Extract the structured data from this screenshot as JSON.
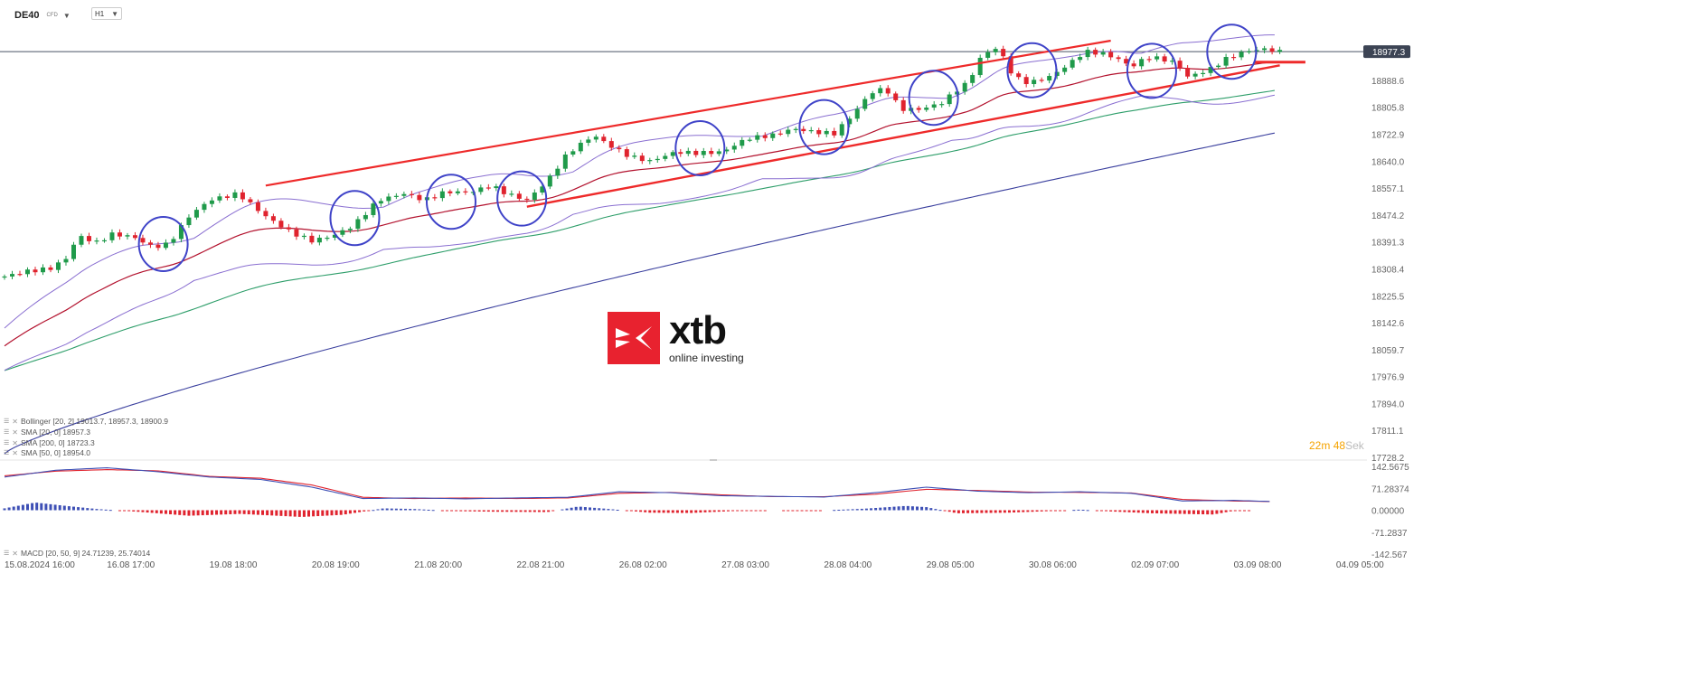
{
  "header": {
    "symbol": "DE40",
    "symbol_type": "CFD",
    "timeframe": "H1"
  },
  "indicators": [
    {
      "label": "Bollinger [20, 2] 19013.7, 18957.3, 18900.9"
    },
    {
      "label": "SMA [20, 0] 18957.3"
    },
    {
      "label": "SMA [200, 0] 18723.3"
    },
    {
      "label": "SMA [50, 0] 18954.0"
    }
  ],
  "macd": {
    "label": "MACD [20, 50, 9] 24.71239, 25.74014"
  },
  "timer": {
    "minutes": "22",
    "m_unit": "m",
    "seconds": "48",
    "s_unit": "Sek"
  },
  "logo": {
    "name": "xtb",
    "tagline": "online investing"
  },
  "current_price": "18977.3",
  "colors": {
    "bull": "#1f9a4a",
    "bear": "#e0232e",
    "bollinger": "#8a6fd1",
    "sma20": "#b3122e",
    "sma50": "#2e9e6a",
    "sma200": "#3a3f9e",
    "channel": "#ee2a2a",
    "circle": "#3f43c8",
    "macd_line": "#3d4fb5",
    "signal_line": "#e0232e"
  },
  "chart_data": [
    {
      "type": "candlestick",
      "title": "DE40 H1",
      "y_ticks": [
        "18977.3",
        "18888.6",
        "18805.8",
        "18722.9",
        "18640.0",
        "18557.1",
        "18474.2",
        "18391.3",
        "18308.4",
        "18225.5",
        "18142.6",
        "18059.7",
        "17976.9",
        "17894.0",
        "17811.1",
        "17728.2"
      ],
      "x_ticks": [
        "15.08.2024 16:00",
        "16.08 17:00",
        "19.08 18:00",
        "20.08 19:00",
        "21.08 20:00",
        "22.08 21:00",
        "26.08 02:00",
        "27.08 03:00",
        "28.08 04:00",
        "29.08 05:00",
        "30.08 06:00",
        "02.09 07:00",
        "03.09 08:00",
        "04.09 05:00"
      ],
      "ylim": [
        17728.2,
        19011.0
      ],
      "x_count": 13.06,
      "price_path": [
        [
          0.0,
          18285
        ],
        [
          0.2,
          18300
        ],
        [
          0.45,
          18310
        ],
        [
          0.6,
          18340
        ],
        [
          0.72,
          18410
        ],
        [
          0.9,
          18390
        ],
        [
          1.05,
          18415
        ],
        [
          1.25,
          18408
        ],
        [
          1.45,
          18375
        ],
        [
          1.6,
          18385
        ],
        [
          1.8,
          18470
        ],
        [
          2.0,
          18520
        ],
        [
          2.28,
          18540
        ],
        [
          2.55,
          18470
        ],
        [
          2.8,
          18420
        ],
        [
          3.0,
          18395
        ],
        [
          3.2,
          18410
        ],
        [
          3.4,
          18440
        ],
        [
          3.65,
          18520
        ],
        [
          3.9,
          18540
        ],
        [
          4.1,
          18520
        ],
        [
          4.3,
          18545
        ],
        [
          4.55,
          18545
        ],
        [
          4.75,
          18565
        ],
        [
          4.9,
          18540
        ],
        [
          5.1,
          18520
        ],
        [
          5.3,
          18580
        ],
        [
          5.5,
          18665
        ],
        [
          5.75,
          18720
        ],
        [
          5.95,
          18680
        ],
        [
          6.1,
          18655
        ],
        [
          6.3,
          18640
        ],
        [
          6.55,
          18668
        ],
        [
          6.75,
          18665
        ],
        [
          7.0,
          18668
        ],
        [
          7.25,
          18710
        ],
        [
          7.5,
          18720
        ],
        [
          7.7,
          18740
        ],
        [
          7.9,
          18730
        ],
        [
          8.1,
          18725
        ],
        [
          8.3,
          18790
        ],
        [
          8.45,
          18850
        ],
        [
          8.6,
          18865
        ],
        [
          8.75,
          18800
        ],
        [
          8.95,
          18800
        ],
        [
          9.15,
          18820
        ],
        [
          9.3,
          18860
        ],
        [
          9.4,
          18880
        ],
        [
          9.55,
          18970
        ],
        [
          9.7,
          18990
        ],
        [
          9.85,
          18900
        ],
        [
          10.0,
          18880
        ],
        [
          10.2,
          18900
        ],
        [
          10.35,
          18930
        ],
        [
          10.55,
          18978
        ],
        [
          10.75,
          18970
        ],
        [
          10.9,
          18950
        ],
        [
          11.0,
          18930
        ],
        [
          11.15,
          18960
        ],
        [
          11.3,
          18955
        ],
        [
          11.45,
          18940
        ],
        [
          11.55,
          18900
        ],
        [
          11.75,
          18920
        ],
        [
          11.95,
          18960
        ],
        [
          12.15,
          18980
        ],
        [
          12.3,
          18985
        ],
        [
          12.45,
          18977
        ]
      ],
      "bollinger_width": 55,
      "channel": {
        "upper": [
          [
            2.55,
            18565
          ],
          [
            10.8,
            19011
          ]
        ],
        "lower": [
          [
            5.1,
            18500
          ],
          [
            12.45,
            18935
          ]
        ],
        "target": [
          [
            12.2,
            18945
          ],
          [
            12.7,
            18945
          ]
        ]
      },
      "circles": [
        [
          1.55,
          18385
        ],
        [
          3.42,
          18465
        ],
        [
          4.36,
          18515
        ],
        [
          5.05,
          18525
        ],
        [
          6.79,
          18680
        ],
        [
          8.0,
          18745
        ],
        [
          9.07,
          18835
        ],
        [
          10.03,
          18920
        ],
        [
          11.2,
          18918
        ],
        [
          11.98,
          18977
        ]
      ]
    },
    {
      "type": "line",
      "title": "MACD [20, 50, 9]",
      "y_ticks": [
        "142.5675",
        "71.28374",
        "0.00000",
        "-71.2837",
        "-142.567"
      ],
      "ylim": [
        -142.567,
        142.5675
      ],
      "macd_path": [
        [
          0.0,
          108
        ],
        [
          0.5,
          130
        ],
        [
          1.0,
          138
        ],
        [
          1.5,
          125
        ],
        [
          2.0,
          108
        ],
        [
          2.5,
          100
        ],
        [
          3.0,
          75
        ],
        [
          3.5,
          38
        ],
        [
          4.0,
          40
        ],
        [
          4.5,
          37
        ],
        [
          5.0,
          40
        ],
        [
          5.5,
          42
        ],
        [
          6.0,
          60
        ],
        [
          6.5,
          57
        ],
        [
          7.0,
          47
        ],
        [
          7.5,
          45
        ],
        [
          8.0,
          43
        ],
        [
          8.5,
          57
        ],
        [
          9.0,
          75
        ],
        [
          9.5,
          62
        ],
        [
          10.0,
          57
        ],
        [
          10.5,
          60
        ],
        [
          11.0,
          55
        ],
        [
          11.5,
          30
        ],
        [
          12.0,
          32
        ],
        [
          12.4,
          28
        ]
      ],
      "signal_path": [
        [
          0.0,
          112
        ],
        [
          0.5,
          127
        ],
        [
          1.0,
          132
        ],
        [
          1.5,
          128
        ],
        [
          2.0,
          110
        ],
        [
          2.5,
          104
        ],
        [
          3.0,
          82
        ],
        [
          3.5,
          42
        ],
        [
          4.0,
          38
        ],
        [
          4.5,
          40
        ],
        [
          5.0,
          38
        ],
        [
          5.5,
          40
        ],
        [
          6.0,
          55
        ],
        [
          6.5,
          58
        ],
        [
          7.0,
          50
        ],
        [
          7.5,
          44
        ],
        [
          8.0,
          44
        ],
        [
          8.5,
          52
        ],
        [
          9.0,
          68
        ],
        [
          9.5,
          64
        ],
        [
          10.0,
          59
        ],
        [
          10.5,
          58
        ],
        [
          11.0,
          56
        ],
        [
          11.5,
          35
        ],
        [
          12.0,
          30
        ],
        [
          12.4,
          28
        ]
      ],
      "histogram_path": [
        [
          0.0,
          6
        ],
        [
          0.3,
          25
        ],
        [
          0.6,
          14
        ],
        [
          0.9,
          4
        ],
        [
          1.3,
          -5
        ],
        [
          1.8,
          -18
        ],
        [
          2.3,
          -12
        ],
        [
          2.9,
          -22
        ],
        [
          3.3,
          -15
        ],
        [
          3.7,
          6
        ],
        [
          4.0,
          4
        ],
        [
          4.4,
          -3
        ],
        [
          4.8,
          -5
        ],
        [
          5.3,
          -6
        ],
        [
          5.6,
          12
        ],
        [
          5.9,
          4
        ],
        [
          6.3,
          -8
        ],
        [
          6.7,
          -9
        ],
        [
          7.1,
          -3
        ],
        [
          7.5,
          0
        ],
        [
          7.9,
          -2
        ],
        [
          8.4,
          5
        ],
        [
          8.8,
          14
        ],
        [
          9.0,
          10
        ],
        [
          9.3,
          -10
        ],
        [
          9.8,
          -8
        ],
        [
          10.2,
          -3
        ],
        [
          10.5,
          2
        ],
        [
          10.8,
          -4
        ],
        [
          11.2,
          -10
        ],
        [
          11.5,
          -12
        ],
        [
          11.8,
          -14
        ],
        [
          12.0,
          -2
        ],
        [
          12.2,
          0
        ],
        [
          12.4,
          0
        ]
      ]
    }
  ]
}
